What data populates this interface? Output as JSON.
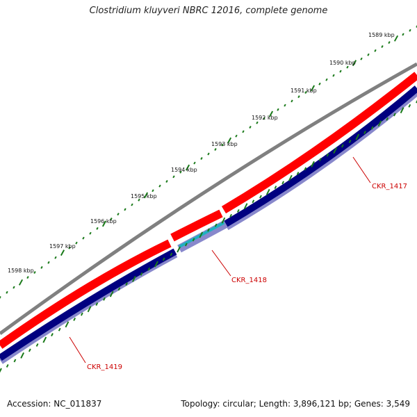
{
  "title": "Clostridium kluyveri NBRC 12016, complete genome",
  "footer": {
    "accession": "Accession: NC_011837",
    "summary": "Topology: circular; Length: 3,896,121 bp; Genes: 3,549"
  },
  "ruler": {
    "labels": [
      "1589 kbp",
      "1590 kbp",
      "1591 kbp",
      "1592 kbp",
      "1593 kbp",
      "1594 kbp",
      "1595 kbp",
      "1596 kbp",
      "1597 kbp",
      "1598 kbp"
    ],
    "tick_color": "#1a7a1a"
  },
  "genes": [
    {
      "name": "CKR_1417",
      "color": "#cc0000"
    },
    {
      "name": "CKR_1418",
      "color": "#cc0000"
    },
    {
      "name": "CKR_1419",
      "color": "#cc0000"
    }
  ],
  "colors": {
    "backbone": "#808080",
    "forward_cds": "#ff0000",
    "reverse_cds": "#000080",
    "reverse_shade": "#8888cc",
    "small_feature": "#20b0c0"
  }
}
